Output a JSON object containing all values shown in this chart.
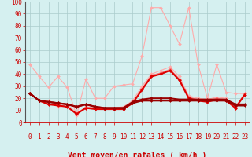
{
  "x": [
    0,
    1,
    2,
    3,
    4,
    5,
    6,
    7,
    8,
    9,
    10,
    11,
    12,
    13,
    14,
    15,
    16,
    17,
    18,
    19,
    20,
    21,
    22,
    23
  ],
  "series": [
    {
      "color": "#ffaaaa",
      "linewidth": 0.8,
      "marker": "D",
      "markersize": 2.0,
      "values": [
        48,
        38,
        29,
        38,
        29,
        6,
        36,
        20,
        20,
        30,
        31,
        32,
        55,
        95,
        95,
        80,
        65,
        95,
        48,
        20,
        48,
        25,
        24,
        24
      ]
    },
    {
      "color": "#ffaaaa",
      "linewidth": 0.8,
      "marker": "D",
      "markersize": 2.0,
      "values": [
        24,
        18,
        18,
        13,
        15,
        8,
        12,
        12,
        12,
        12,
        13,
        18,
        30,
        40,
        43,
        46,
        38,
        22,
        20,
        19,
        21,
        20,
        13,
        24
      ]
    },
    {
      "color": "#ff7777",
      "linewidth": 0.8,
      "marker": "D",
      "markersize": 2.0,
      "values": [
        24,
        18,
        15,
        15,
        13,
        7,
        13,
        12,
        12,
        11,
        11,
        16,
        28,
        39,
        41,
        44,
        36,
        21,
        19,
        18,
        20,
        19,
        12,
        24
      ]
    },
    {
      "color": "#dd0000",
      "linewidth": 1.5,
      "marker": "D",
      "markersize": 2.0,
      "values": [
        24,
        18,
        15,
        14,
        13,
        7,
        12,
        11,
        11,
        11,
        11,
        16,
        27,
        38,
        40,
        43,
        35,
        20,
        18,
        17,
        19,
        18,
        12,
        23
      ]
    },
    {
      "color": "#990000",
      "linewidth": 1.5,
      "marker": "D",
      "markersize": 2.0,
      "values": [
        24,
        18,
        17,
        16,
        15,
        13,
        15,
        13,
        12,
        12,
        12,
        17,
        19,
        20,
        20,
        20,
        19,
        19,
        19,
        19,
        19,
        19,
        15,
        15
      ]
    },
    {
      "color": "#990000",
      "linewidth": 1.5,
      "marker": "D",
      "markersize": 2.0,
      "values": [
        24,
        18,
        17,
        16,
        15,
        13,
        15,
        13,
        12,
        12,
        12,
        16,
        18,
        18,
        18,
        18,
        18,
        18,
        18,
        18,
        18,
        18,
        14,
        14
      ]
    }
  ],
  "wind_arrows": [
    "↗",
    "↑",
    "↗",
    "↑",
    "↑",
    "↑",
    "↑",
    "↑",
    "↑",
    "↑",
    "↑",
    "↑",
    "↗",
    "↗",
    "↗",
    "↗",
    "↗",
    "↗",
    "↗",
    "↑",
    "↑",
    "↑",
    "↑",
    "↑"
  ],
  "xlabel": "Vent moyen/en rafales ( km/h )",
  "ylim": [
    0,
    100
  ],
  "yticks": [
    0,
    10,
    20,
    30,
    40,
    50,
    60,
    70,
    80,
    90,
    100
  ],
  "xlim_min": -0.5,
  "xlim_max": 23.5,
  "xticks": [
    0,
    1,
    2,
    3,
    4,
    5,
    6,
    7,
    8,
    9,
    10,
    11,
    12,
    13,
    14,
    15,
    16,
    17,
    18,
    19,
    20,
    21,
    22,
    23
  ],
  "background_color": "#d5f0f0",
  "grid_color": "#aacccc",
  "axis_color": "#cc0000",
  "arrow_color": "#cc0000",
  "xlabel_color": "#cc0000",
  "xlabel_fontsize": 7,
  "tick_fontsize": 5.5
}
